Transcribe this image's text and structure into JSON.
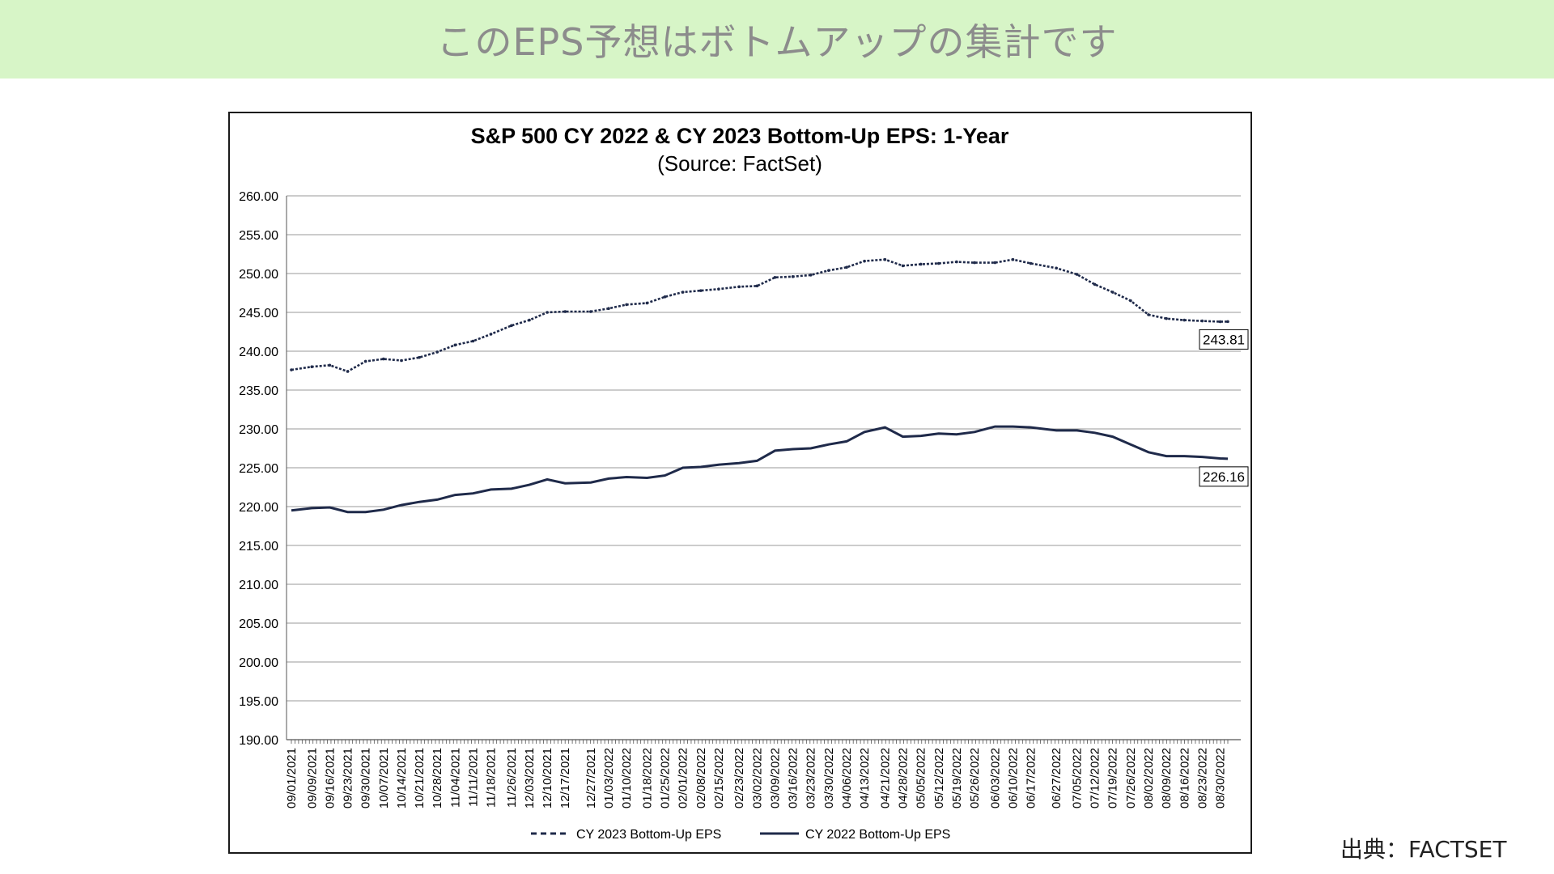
{
  "banner": {
    "title": "このEPS予想はボトムアップの集計です"
  },
  "source_note": "出典：FACTSET",
  "chart_data": {
    "type": "line",
    "title": "S&P 500 CY 2022 & CY 2023 Bottom-Up EPS: 1-Year",
    "subtitle": "(Source: FactSet)",
    "ylim": [
      190,
      260
    ],
    "y_ticks": [
      "260.00",
      "255.00",
      "250.00",
      "245.00",
      "240.00",
      "235.00",
      "230.00",
      "225.00",
      "220.00",
      "215.00",
      "210.00",
      "205.00",
      "200.00",
      "195.00",
      "190.00"
    ],
    "x_tick_labels": [
      "09/01/2021",
      "09/09/2021",
      "09/16/2021",
      "09/23/2021",
      "09/30/2021",
      "10/07/2021",
      "10/14/2021",
      "10/21/2021",
      "10/28/2021",
      "11/04/2021",
      "11/11/2021",
      "11/18/2021",
      "11/26/2021",
      "12/03/2021",
      "12/10/2021",
      "12/17/2021",
      "12/27/2021",
      "01/03/2022",
      "01/10/2022",
      "01/18/2022",
      "01/25/2022",
      "02/01/2022",
      "02/08/2022",
      "02/15/2022",
      "02/23/2022",
      "03/02/2022",
      "03/09/2022",
      "03/16/2022",
      "03/23/2022",
      "03/30/2022",
      "04/06/2022",
      "04/13/2022",
      "04/21/2022",
      "04/28/2022",
      "05/05/2022",
      "05/12/2022",
      "05/19/2022",
      "05/26/2022",
      "06/03/2022",
      "06/10/2022",
      "06/17/2022",
      "06/27/2022",
      "07/05/2022",
      "07/12/2022",
      "07/19/2022",
      "07/26/2022",
      "08/02/2022",
      "08/09/2022",
      "08/16/2022",
      "08/23/2022",
      "08/30/2022"
    ],
    "grid": true,
    "legend_position": "bottom",
    "series": [
      {
        "name": "CY 2023 Bottom-Up EPS",
        "style": "dashed-markers",
        "color": "#1f2a4a",
        "end_label": "243.81",
        "x": [
          "09/01/2021",
          "09/09/2021",
          "09/16/2021",
          "09/23/2021",
          "09/30/2021",
          "10/07/2021",
          "10/14/2021",
          "10/21/2021",
          "10/28/2021",
          "11/04/2021",
          "11/11/2021",
          "11/18/2021",
          "11/26/2021",
          "12/03/2021",
          "12/10/2021",
          "12/17/2021",
          "12/27/2021",
          "01/03/2022",
          "01/10/2022",
          "01/18/2022",
          "01/25/2022",
          "02/01/2022",
          "02/08/2022",
          "02/15/2022",
          "02/23/2022",
          "03/02/2022",
          "03/09/2022",
          "03/16/2022",
          "03/23/2022",
          "03/30/2022",
          "04/06/2022",
          "04/13/2022",
          "04/21/2022",
          "04/28/2022",
          "05/05/2022",
          "05/12/2022",
          "05/19/2022",
          "05/26/2022",
          "06/03/2022",
          "06/10/2022",
          "06/17/2022",
          "06/27/2022",
          "07/05/2022",
          "07/12/2022",
          "07/19/2022",
          "07/26/2022",
          "08/02/2022",
          "08/09/2022",
          "08/16/2022",
          "08/23/2022",
          "08/30/2022",
          "09/02/2022"
        ],
        "values": [
          237.6,
          238.0,
          238.2,
          237.4,
          238.7,
          239.0,
          238.8,
          239.2,
          239.9,
          240.8,
          241.3,
          242.2,
          243.3,
          244.0,
          245.0,
          245.1,
          245.1,
          245.5,
          246.0,
          246.2,
          247.0,
          247.6,
          247.8,
          248.0,
          248.3,
          248.4,
          249.5,
          249.6,
          249.8,
          250.4,
          250.8,
          251.6,
          251.8,
          251.0,
          251.2,
          251.3,
          251.5,
          251.4,
          251.4,
          251.8,
          251.3,
          250.7,
          249.9,
          248.6,
          247.6,
          246.5,
          244.7,
          244.2,
          244.0,
          243.9,
          243.8,
          243.81
        ]
      },
      {
        "name": "CY 2022 Bottom-Up EPS",
        "style": "solid",
        "color": "#1f2a4a",
        "end_label": "226.16",
        "x": [
          "09/01/2021",
          "09/09/2021",
          "09/16/2021",
          "09/23/2021",
          "09/30/2021",
          "10/07/2021",
          "10/14/2021",
          "10/21/2021",
          "10/28/2021",
          "11/04/2021",
          "11/11/2021",
          "11/18/2021",
          "11/26/2021",
          "12/03/2021",
          "12/10/2021",
          "12/17/2021",
          "12/27/2021",
          "01/03/2022",
          "01/10/2022",
          "01/18/2022",
          "01/25/2022",
          "02/01/2022",
          "02/08/2022",
          "02/15/2022",
          "02/23/2022",
          "03/02/2022",
          "03/09/2022",
          "03/16/2022",
          "03/23/2022",
          "03/30/2022",
          "04/06/2022",
          "04/13/2022",
          "04/21/2022",
          "04/28/2022",
          "05/05/2022",
          "05/12/2022",
          "05/19/2022",
          "05/26/2022",
          "06/03/2022",
          "06/10/2022",
          "06/17/2022",
          "06/27/2022",
          "07/05/2022",
          "07/12/2022",
          "07/19/2022",
          "07/26/2022",
          "08/02/2022",
          "08/09/2022",
          "08/16/2022",
          "08/23/2022",
          "08/30/2022",
          "09/02/2022"
        ],
        "values": [
          219.5,
          219.8,
          219.9,
          219.3,
          219.3,
          219.6,
          220.2,
          220.6,
          220.9,
          221.5,
          221.7,
          222.2,
          222.3,
          222.8,
          223.5,
          223.0,
          223.1,
          223.6,
          223.8,
          223.7,
          224.0,
          225.0,
          225.1,
          225.4,
          225.6,
          225.9,
          227.2,
          227.4,
          227.5,
          228.0,
          228.4,
          229.6,
          230.2,
          229.0,
          229.1,
          229.4,
          229.3,
          229.6,
          230.3,
          230.3,
          230.2,
          229.8,
          229.8,
          229.5,
          229.0,
          228.0,
          227.0,
          226.5,
          226.5,
          226.4,
          226.2,
          226.16
        ]
      }
    ]
  }
}
